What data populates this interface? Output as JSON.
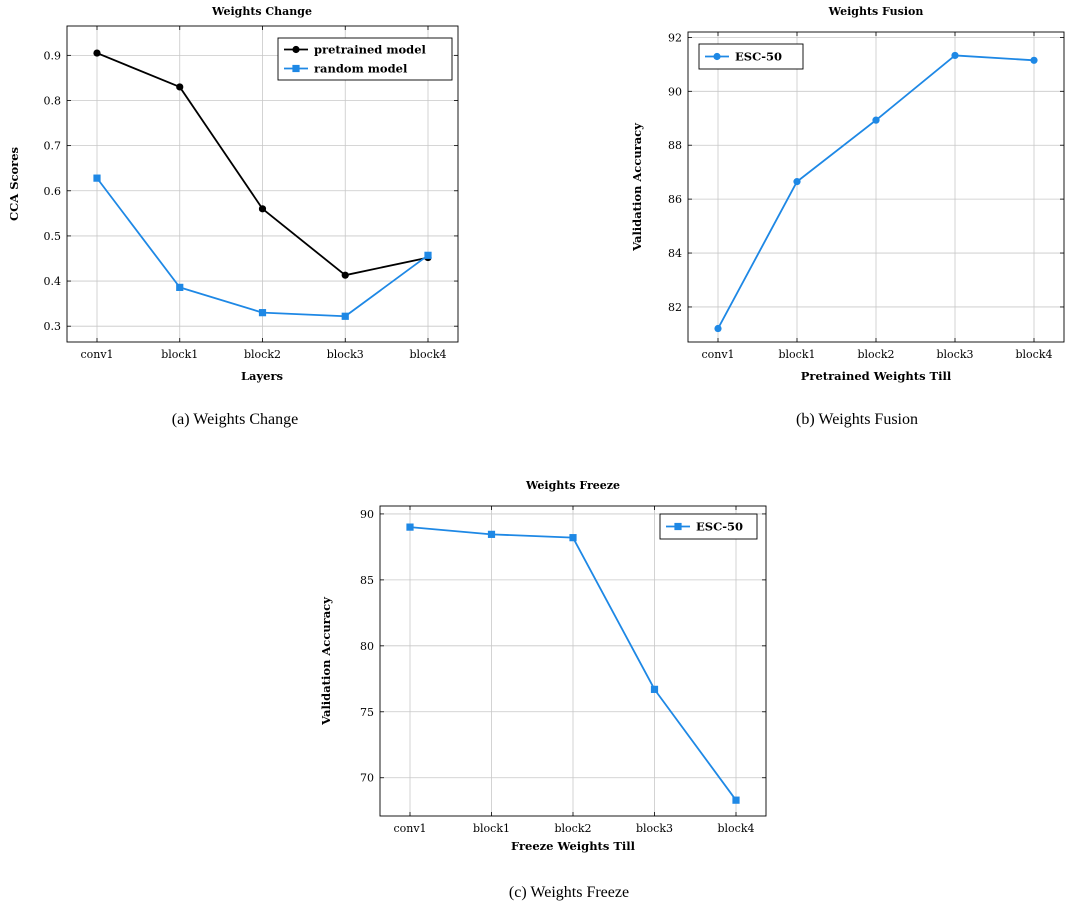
{
  "captions": {
    "a": "(a) Weights Change",
    "b": "(b) Weights Fusion",
    "c": "(c) Weights Freeze"
  },
  "colors": {
    "blue": "#1e88e5",
    "black": "#000000",
    "grid": "#c8c8c8"
  },
  "chart_data": [
    {
      "type": "line",
      "title": "Weights Change",
      "xlabel": "Layers",
      "ylabel": "CCA Scores",
      "categories": [
        "conv1",
        "block1",
        "block2",
        "block3",
        "block4"
      ],
      "ylim": [
        0.265,
        0.965
      ],
      "yticks": [
        0.3,
        0.4,
        0.5,
        0.6,
        0.7,
        0.8,
        0.9
      ],
      "ytick_labels": [
        "0.3",
        "0.4",
        "0.5",
        "0.6",
        "0.7",
        "0.8",
        "0.9"
      ],
      "grid": true,
      "legend_position": "top-right",
      "series": [
        {
          "name": "pretrained model",
          "values": [
            0.905,
            0.83,
            0.56,
            0.413,
            0.452
          ],
          "color": "#000000",
          "marker": "circle"
        },
        {
          "name": "random model",
          "values": [
            0.628,
            0.386,
            0.33,
            0.322,
            0.457
          ],
          "color": "#1e88e5",
          "marker": "square"
        }
      ]
    },
    {
      "type": "line",
      "title": "Weights Fusion",
      "xlabel": "Pretrained Weights Till",
      "ylabel": "Validation Accuracy",
      "categories": [
        "conv1",
        "block1",
        "block2",
        "block3",
        "block4"
      ],
      "ylim": [
        80.7,
        92.2
      ],
      "yticks": [
        82,
        84,
        86,
        88,
        90,
        92
      ],
      "ytick_labels": [
        "82",
        "84",
        "86",
        "88",
        "90",
        "92"
      ],
      "grid": true,
      "legend_position": "top-left",
      "series": [
        {
          "name": "ESC-50",
          "values": [
            81.2,
            86.65,
            88.93,
            91.33,
            91.15
          ],
          "color": "#1e88e5",
          "marker": "circle"
        }
      ]
    },
    {
      "type": "line",
      "title": "Weights Freeze",
      "xlabel": "Freeze Weights Till",
      "ylabel": "Validation Accuracy",
      "categories": [
        "conv1",
        "block1",
        "block2",
        "block3",
        "block4"
      ],
      "ylim": [
        67.1,
        90.6
      ],
      "yticks": [
        70,
        75,
        80,
        85,
        90
      ],
      "ytick_labels": [
        "70",
        "75",
        "80",
        "85",
        "90"
      ],
      "grid": true,
      "legend_position": "top-right",
      "series": [
        {
          "name": "ESC-50",
          "values": [
            89.0,
            88.45,
            88.2,
            76.7,
            68.3
          ],
          "color": "#1e88e5",
          "marker": "square"
        }
      ]
    }
  ]
}
